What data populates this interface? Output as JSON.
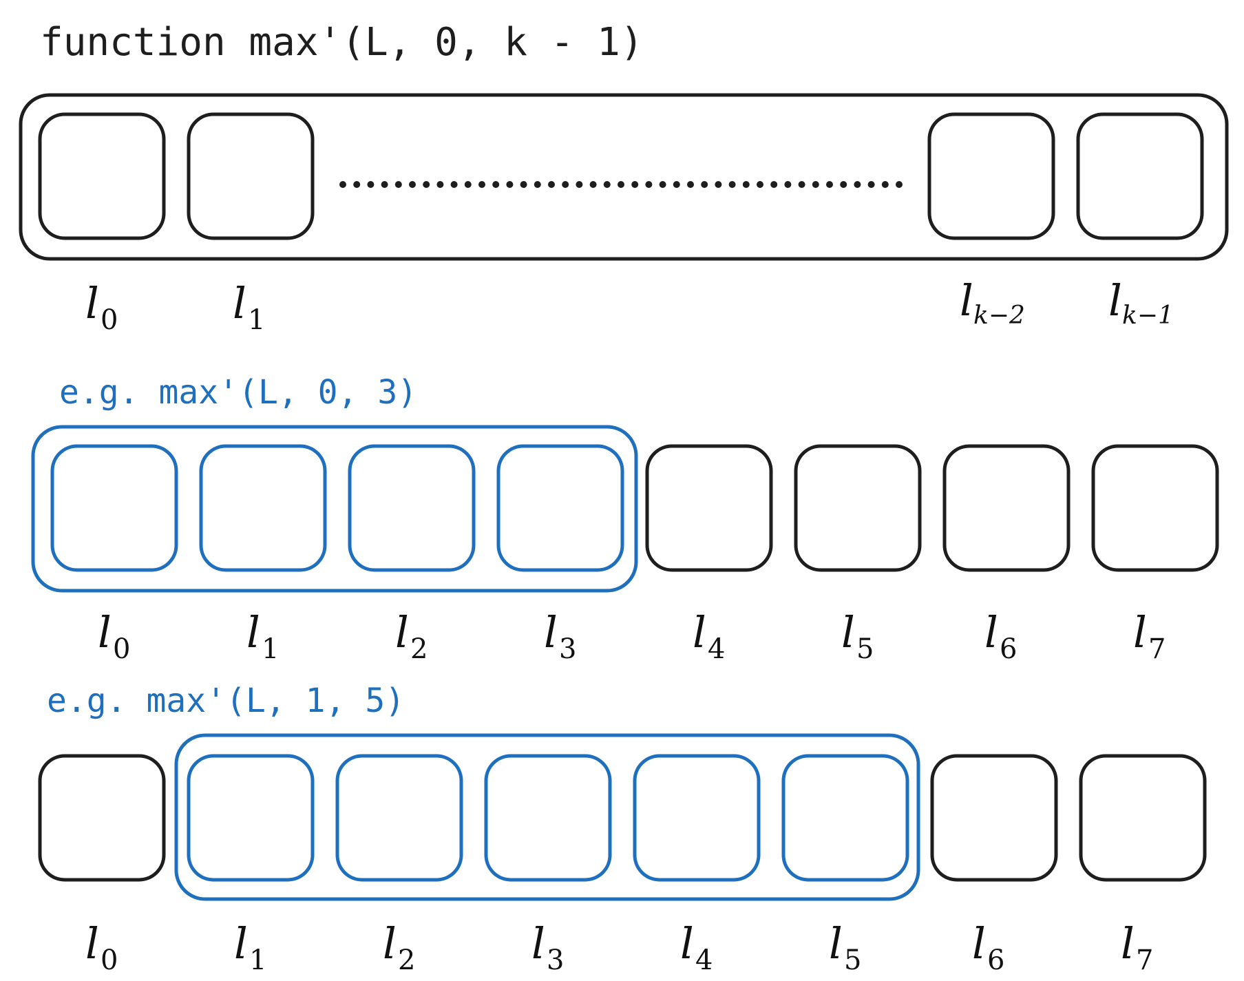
{
  "colors": {
    "ink": "#1e1e1e",
    "accent": "#1f6fbf"
  },
  "section1": {
    "title": "function max'(L, 0, k - 1)",
    "labels": [
      {
        "base": "l",
        "sub": "0"
      },
      {
        "base": "l",
        "sub": "1"
      },
      {
        "base": "l",
        "sub": "k−2"
      },
      {
        "base": "l",
        "sub": "k−1"
      }
    ]
  },
  "section2": {
    "title": "e.g. max'(L, 0, 3)",
    "labels": [
      {
        "base": "l",
        "sub": "0"
      },
      {
        "base": "l",
        "sub": "1"
      },
      {
        "base": "l",
        "sub": "2"
      },
      {
        "base": "l",
        "sub": "3"
      },
      {
        "base": "l",
        "sub": "4"
      },
      {
        "base": "l",
        "sub": "5"
      },
      {
        "base": "l",
        "sub": "6"
      },
      {
        "base": "l",
        "sub": "7"
      }
    ],
    "highlight_range": [
      0,
      3
    ]
  },
  "section3": {
    "title": "e.g. max'(L, 1, 5)",
    "labels": [
      {
        "base": "l",
        "sub": "0"
      },
      {
        "base": "l",
        "sub": "1"
      },
      {
        "base": "l",
        "sub": "2"
      },
      {
        "base": "l",
        "sub": "3"
      },
      {
        "base": "l",
        "sub": "4"
      },
      {
        "base": "l",
        "sub": "5"
      },
      {
        "base": "l",
        "sub": "6"
      },
      {
        "base": "l",
        "sub": "7"
      }
    ],
    "highlight_range": [
      1,
      5
    ]
  }
}
